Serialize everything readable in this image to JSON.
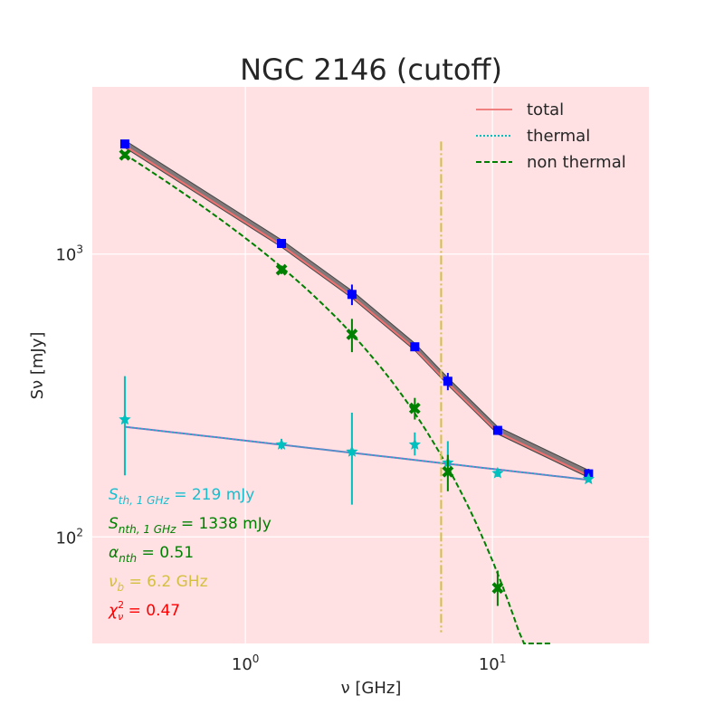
{
  "chart_data": {
    "type": "scatter",
    "title": "NGC 2146 (cutoff)",
    "xlabel": "ν [GHz]",
    "ylabel": "Sν [mJy]",
    "xscale": "log",
    "yscale": "log",
    "xlim": [
      0.24,
      43
    ],
    "ylim": [
      42,
      3900
    ],
    "x_ticks": [
      {
        "base": "10",
        "exp": "0",
        "value": 1
      },
      {
        "base": "10",
        "exp": "1",
        "value": 10
      }
    ],
    "y_ticks": [
      {
        "base": "10",
        "exp": "2",
        "value": 100
      },
      {
        "base": "10",
        "exp": "3",
        "value": 1000
      }
    ],
    "grid": true,
    "legend_position": "top-right",
    "legend": [
      {
        "label": "total",
        "style": "solid",
        "color": "#f08080"
      },
      {
        "label": "thermal",
        "style": "dotted",
        "color": "#00bfbf"
      },
      {
        "label": "non thermal",
        "style": "dashed",
        "color": "#008000"
      }
    ],
    "series": [
      {
        "name": "total observed",
        "marker": "square",
        "color": "#0000ff",
        "points": [
          {
            "x": 0.325,
            "y": 2450,
            "err": 60
          },
          {
            "x": 1.4,
            "y": 1090,
            "err": 30
          },
          {
            "x": 2.7,
            "y": 720,
            "err": 60
          },
          {
            "x": 4.85,
            "y": 470,
            "err": 15
          },
          {
            "x": 6.6,
            "y": 355,
            "err": 25
          },
          {
            "x": 10.5,
            "y": 238,
            "err": 8
          },
          {
            "x": 24.5,
            "y": 167,
            "err": 7
          }
        ]
      },
      {
        "name": "thermal component",
        "marker": "star",
        "color": "#00bfbf",
        "points": [
          {
            "x": 0.325,
            "y": 260,
            "err_lo": 95,
            "err_hi": 110
          },
          {
            "x": 1.4,
            "y": 212,
            "err_lo": 8,
            "err_hi": 10
          },
          {
            "x": 2.7,
            "y": 200,
            "err_lo": 70,
            "err_hi": 75
          },
          {
            "x": 4.85,
            "y": 212,
            "err_lo": 18,
            "err_hi": 22
          },
          {
            "x": 6.6,
            "y": 183,
            "err_lo": 20,
            "err_hi": 35
          },
          {
            "x": 10.5,
            "y": 168,
            "err_lo": 5,
            "err_hi": 5
          },
          {
            "x": 24.5,
            "y": 160,
            "err_lo": 4,
            "err_hi": 4
          }
        ]
      },
      {
        "name": "non-thermal component",
        "marker": "x",
        "color": "#008000",
        "points": [
          {
            "x": 0.325,
            "y": 2240,
            "err_lo": 60,
            "err_hi": 60
          },
          {
            "x": 1.4,
            "y": 880,
            "err_lo": 30,
            "err_hi": 30
          },
          {
            "x": 2.7,
            "y": 520,
            "err_lo": 70,
            "err_hi": 70
          },
          {
            "x": 4.85,
            "y": 285,
            "err_lo": 25,
            "err_hi": 25
          },
          {
            "x": 6.6,
            "y": 170,
            "err_lo": 25,
            "err_hi": 25
          },
          {
            "x": 10.5,
            "y": 66,
            "err_lo": 9,
            "err_hi": 10
          }
        ]
      }
    ],
    "model": {
      "s_th_1ghz": 219,
      "s_nth_1ghz": 1338,
      "alpha_nth": 0.51,
      "nu_b": 6.2,
      "thermal_index": -0.1,
      "x_range": [
        0.325,
        24.5
      ],
      "nonthermal_x_range": [
        0.325,
        17.2
      ]
    },
    "break_line": {
      "x": 6.2,
      "y_range": [
        46,
        2500
      ],
      "color": "#d4c040"
    },
    "annotations": [
      {
        "text": "S",
        "sub": "th, 1 GHz",
        "rest": " = 219 mJy",
        "color": "#17becf",
        "sup": ""
      },
      {
        "text": "S",
        "sub": "nth, 1 GHz",
        "rest": " = 1338 mJy",
        "color": "#008000",
        "sup": ""
      },
      {
        "text": "α",
        "sub": "nth",
        "rest": " = 0.51",
        "color": "#008000",
        "sup": ""
      },
      {
        "text": "ν",
        "sub": "b",
        "rest": " = 6.2 GHz",
        "color": "#d4c040",
        "sup": ""
      },
      {
        "text": "χ",
        "sub": "ν",
        "sup": "2",
        "rest": " = 0.47",
        "color": "#ff0000"
      }
    ]
  }
}
